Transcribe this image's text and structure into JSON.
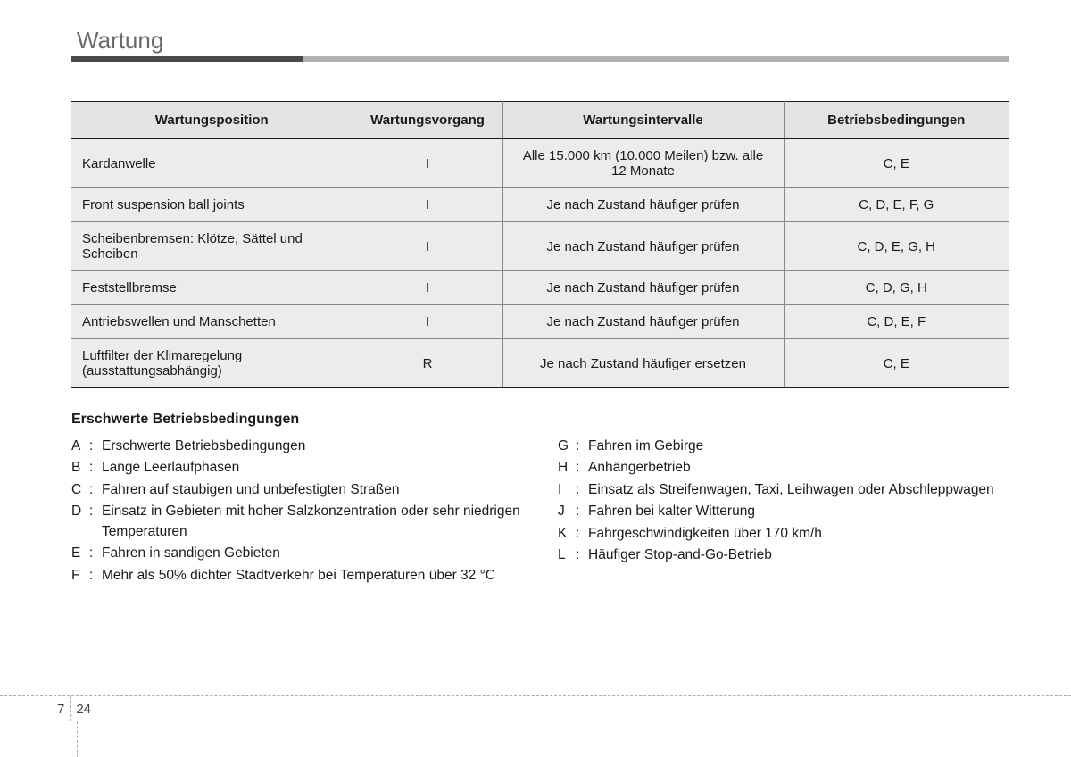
{
  "header": {
    "title": "Wartung"
  },
  "table": {
    "columns": [
      "Wartungsposition",
      "Wartungsvorgang",
      "Wartungsintervalle",
      "Betriebsbedingungen"
    ],
    "col_widths": [
      "30%",
      "16%",
      "30%",
      "24%"
    ],
    "header_bg": "#e3e3e3",
    "row_bg": "#ececec",
    "border_color": "#888888",
    "outer_border_color": "#1a1a1a",
    "rows": [
      {
        "pos": "Kardanwelle",
        "op": "I",
        "interval": "Alle 15.000 km (10.000 Meilen) bzw. alle 12 Monate",
        "cond": "C, E"
      },
      {
        "pos": "Front suspension ball joints",
        "op": "I",
        "interval": "Je nach Zustand häufiger prüfen",
        "cond": "C, D, E, F, G"
      },
      {
        "pos": "Scheibenbremsen: Klötze, Sättel und Scheiben",
        "op": "I",
        "interval": "Je nach Zustand häufiger prüfen",
        "cond": "C, D, E, G, H"
      },
      {
        "pos": "Feststellbremse",
        "op": "I",
        "interval": "Je nach Zustand häufiger prüfen",
        "cond": "C, D, G, H"
      },
      {
        "pos": "Antriebswellen und Manschetten",
        "op": "I",
        "interval": "Je nach Zustand häufiger prüfen",
        "cond": "C, D, E, F"
      },
      {
        "pos": "Luftfilter der Klimaregelung (ausstattungsabhängig)",
        "op": "R",
        "interval": "Je nach Zustand häufiger ersetzen",
        "cond": "C, E"
      }
    ]
  },
  "conditions": {
    "title": "Erschwerte Betriebsbedingungen",
    "left": [
      {
        "k": "A",
        "v": "Erschwerte Betriebsbedingungen"
      },
      {
        "k": "B",
        "v": "Lange Leerlaufphasen"
      },
      {
        "k": "C",
        "v": "Fahren auf staubigen und unbefestigten Straßen"
      },
      {
        "k": "D",
        "v": "Einsatz in Gebieten mit hoher Salzkonzentration oder sehr niedrigen Temperaturen"
      },
      {
        "k": "E",
        "v": "Fahren in sandigen Gebieten"
      },
      {
        "k": "F",
        "v": "Mehr als 50% dichter Stadtverkehr bei Temperaturen über 32 °C"
      }
    ],
    "right": [
      {
        "k": "G",
        "v": "Fahren im Gebirge"
      },
      {
        "k": "H",
        "v": "Anhängerbetrieb"
      },
      {
        "k": "I",
        "v": "Einsatz als Streifenwagen, Taxi, Leihwagen oder Abschleppwagen",
        "justify": true
      },
      {
        "k": "J",
        "v": "Fahren bei kalter Witterung"
      },
      {
        "k": "K",
        "v": "Fahrgeschwindigkeiten über 170 km/h"
      },
      {
        "k": "L",
        "v": "Häufiger Stop-and-Go-Betrieb"
      }
    ]
  },
  "footer": {
    "chapter": "7",
    "page": "24"
  }
}
